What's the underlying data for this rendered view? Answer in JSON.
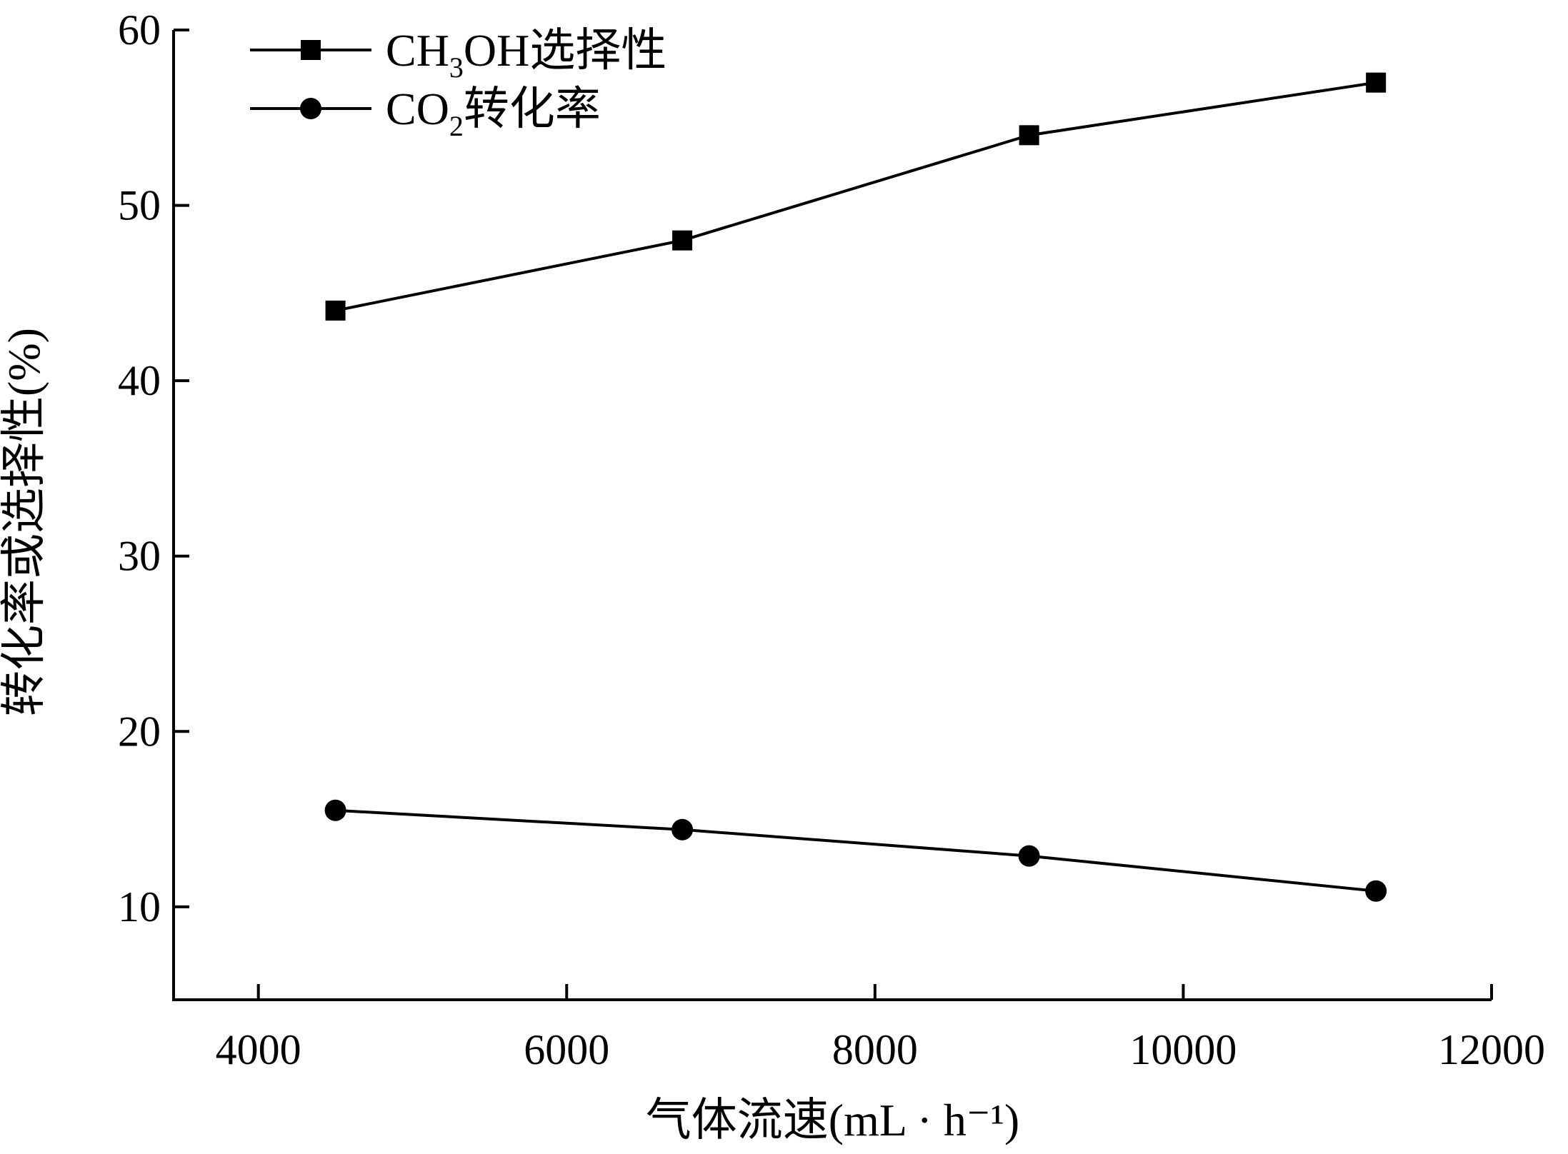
{
  "chart_data": {
    "type": "line",
    "xlabel": "气体流速(mL · h⁻¹)",
    "ylabel": "转化率或选择性(%)",
    "xlim": [
      3450,
      12000
    ],
    "ylim": [
      4.7,
      60
    ],
    "xticks": [
      "4000",
      "6000",
      "8000",
      "10000",
      "12000"
    ],
    "yticks": [
      "10",
      "20",
      "30",
      "40",
      "50",
      "60"
    ],
    "grid": false,
    "legend_position": "top-left",
    "line_color": "#000000",
    "series": [
      {
        "name": "CH₃OH选择性",
        "name_parts": [
          "CH",
          "3",
          "OH选择性"
        ],
        "marker": "square",
        "x": [
          4500,
          6750,
          9000,
          11250
        ],
        "values": [
          44,
          48,
          54,
          57
        ]
      },
      {
        "name": "CO₂转化率",
        "name_parts": [
          "CO",
          "2",
          "转化率"
        ],
        "marker": "circle",
        "x": [
          4500,
          6750,
          9000,
          11250
        ],
        "values": [
          15.5,
          14.4,
          12.9,
          10.9
        ]
      }
    ]
  }
}
